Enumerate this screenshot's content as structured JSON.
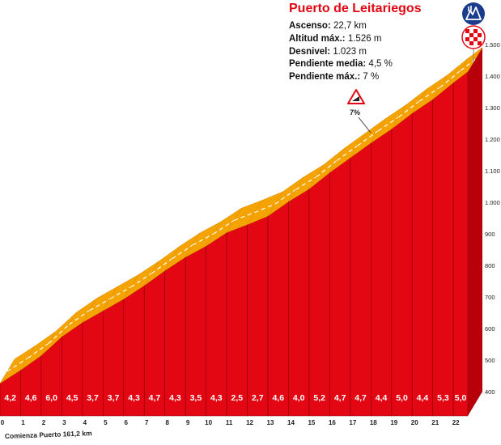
{
  "chart_data": {
    "type": "area",
    "title": "Puerto de Leitariegos",
    "info": [
      {
        "label": "Ascenso:",
        "value": "22,7 km"
      },
      {
        "label": "Altitud máx.:",
        "value": "1.526 m"
      },
      {
        "label": "Desnivel:",
        "value": "1.023 m"
      },
      {
        "label": "Pendiente media:",
        "value": "4,5 %"
      },
      {
        "label": "Pendiente máx.:",
        "value": "7 %"
      }
    ],
    "x_ticks": [
      "0",
      "1",
      "2",
      "3",
      "4",
      "5",
      "6",
      "7",
      "8",
      "9",
      "10",
      "11",
      "12",
      "13",
      "14",
      "15",
      "16",
      "17",
      "18",
      "19",
      "20",
      "21",
      "22"
    ],
    "y_ticks": [
      "1.500",
      "1.400",
      "1.300",
      "1.200",
      "1.100",
      "1.000",
      "900",
      "800",
      "700",
      "600",
      "500",
      "400"
    ],
    "ylim": [
      400,
      1500
    ],
    "xlim": [
      0,
      22.7
    ],
    "segment_grades": [
      "4,2",
      "4,6",
      "6,0",
      "4,5",
      "3,7",
      "3,7",
      "4,3",
      "4,7",
      "4,3",
      "3,5",
      "4,3",
      "2,5",
      "2,7",
      "4,6",
      "4,0",
      "5,2",
      "4,7",
      "4,7",
      "4,4",
      "5,0",
      "4,4",
      "5,3",
      "5,0"
    ],
    "profile": {
      "km": [
        0,
        1,
        2,
        3,
        4,
        5,
        6,
        7,
        8,
        9,
        10,
        11,
        12,
        13,
        14,
        15,
        16,
        17,
        18,
        19,
        20,
        21,
        22,
        22.7
      ],
      "altitude_m": [
        503,
        545,
        591,
        651,
        696,
        733,
        770,
        813,
        860,
        903,
        938,
        981,
        1006,
        1033,
        1079,
        1119,
        1171,
        1218,
        1265,
        1309,
        1359,
        1403,
        1456,
        1491
      ]
    },
    "start_label": "Comienza Puerto 161,2 km",
    "max_grade_label": "7%",
    "colors": {
      "fill": "#e30613",
      "top_band": "#f5a300",
      "dash": "#ffffff",
      "title": "#e30613",
      "base": "#a7a7a7"
    },
    "icons": [
      "mountain-pass-icon",
      "finish-flag-icon",
      "steep-gradient-sign-icon"
    ]
  }
}
